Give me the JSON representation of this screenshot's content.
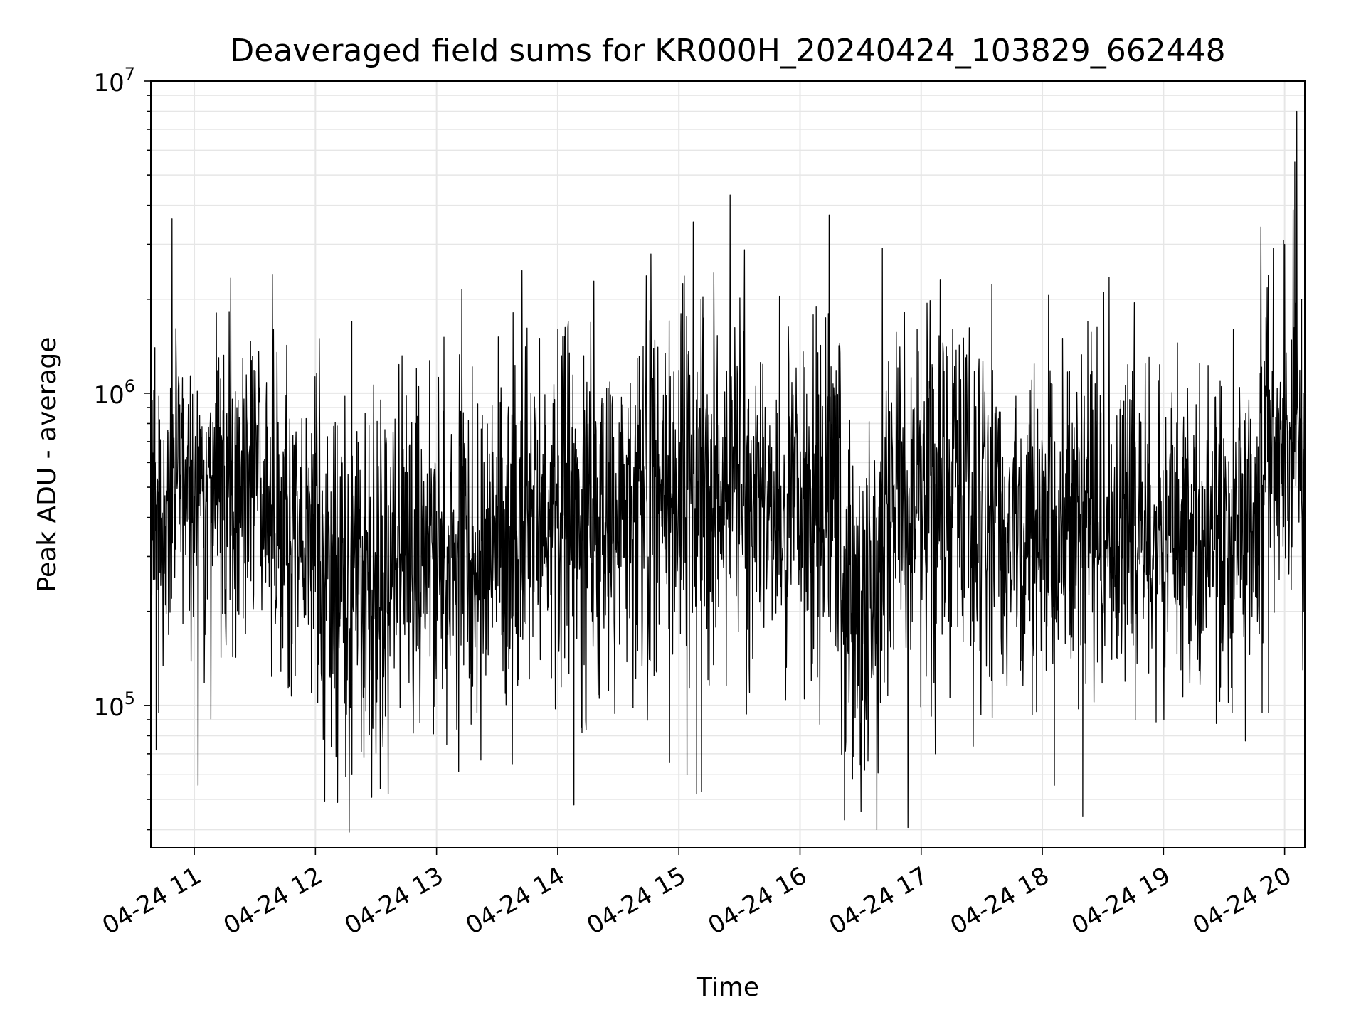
{
  "chart_data": {
    "type": "line",
    "title": "Deaveraged field sums for KR000H_20240424_103829_662448",
    "xlabel": "Time",
    "ylabel": "Peak ADU - average",
    "y_scale": "log",
    "ylim": [
      35000,
      10000000
    ],
    "xlim": [
      "2024-04-24 10:38:29",
      "2024-04-24 20:10:00"
    ],
    "grid": true,
    "legend": "none",
    "line_color": "#000000",
    "grid_color": "#e6e6e6",
    "x_ticks": [
      {
        "value": "2024-04-24 11:00",
        "label": "04-24 11"
      },
      {
        "value": "2024-04-24 12:00",
        "label": "04-24 12"
      },
      {
        "value": "2024-04-24 13:00",
        "label": "04-24 13"
      },
      {
        "value": "2024-04-24 14:00",
        "label": "04-24 14"
      },
      {
        "value": "2024-04-24 15:00",
        "label": "04-24 15"
      },
      {
        "value": "2024-04-24 16:00",
        "label": "04-24 16"
      },
      {
        "value": "2024-04-24 17:00",
        "label": "04-24 17"
      },
      {
        "value": "2024-04-24 18:00",
        "label": "04-24 18"
      },
      {
        "value": "2024-04-24 19:00",
        "label": "04-24 19"
      },
      {
        "value": "2024-04-24 20:00",
        "label": "04-24 20"
      }
    ],
    "y_ticks": [
      {
        "value": 100000,
        "base": "10",
        "exp": "5"
      },
      {
        "value": 1000000,
        "base": "10",
        "exp": "6"
      },
      {
        "value": 10000000,
        "base": "10",
        "exp": "7"
      }
    ],
    "segments": [
      {
        "start": "2024-04-24 10:38",
        "end": "2024-04-24 11:40",
        "median": 500000,
        "spread": 0.62,
        "events": [
          [
            0.05,
            72000
          ],
          [
            0.07,
            95000
          ],
          [
            0.04,
            1400000
          ],
          [
            0.55,
            1300000
          ]
        ]
      },
      {
        "start": "2024-04-24 11:40",
        "end": "2024-04-24 12:00",
        "median": 350000,
        "spread": 0.58,
        "events": [
          [
            0.35,
            115000
          ],
          [
            0.9,
            110000
          ]
        ]
      },
      {
        "start": "2024-04-24 12:00",
        "end": "2024-04-24 12:40",
        "median": 230000,
        "spread": 0.68,
        "events": [
          [
            0.2,
            88000
          ],
          [
            0.45,
            1700000
          ],
          [
            0.6,
            68000
          ],
          [
            0.9,
            52000
          ]
        ]
      },
      {
        "start": "2024-04-24 12:40",
        "end": "2024-04-24 13:30",
        "median": 320000,
        "spread": 0.68,
        "events": [
          [
            0.2,
            1200000
          ],
          [
            0.5,
            75000
          ],
          [
            0.8,
            95000
          ]
        ]
      },
      {
        "start": "2024-04-24 13:30",
        "end": "2024-04-24 14:00",
        "median": 380000,
        "spread": 0.68,
        "events": [
          [
            0.25,
            65000
          ],
          [
            0.7,
            1500000
          ]
        ]
      },
      {
        "start": "2024-04-24 14:00",
        "end": "2024-04-24 14:40",
        "median": 420000,
        "spread": 0.68,
        "events": [
          [
            0.0,
            1600000
          ],
          [
            0.2,
            48000
          ],
          [
            0.3,
            82000
          ]
        ]
      },
      {
        "start": "2024-04-24 14:40",
        "end": "2024-04-24 15:40",
        "median": 480000,
        "spread": 0.68,
        "events": [
          [
            0.35,
            1800000
          ],
          [
            0.4,
            60000
          ],
          [
            0.48,
            52000
          ],
          [
            0.52,
            53000
          ]
        ]
      },
      {
        "start": "2024-04-24 15:40",
        "end": "2024-04-24 16:20",
        "median": 420000,
        "spread": 0.68,
        "events": [
          [
            0.7,
            1900000
          ],
          [
            0.85,
            1800000
          ]
        ]
      },
      {
        "start": "2024-04-24 16:20",
        "end": "2024-04-24 16:40",
        "median": 220000,
        "spread": 0.68,
        "events": [
          [
            0.1,
            43000
          ],
          [
            0.3,
            58000
          ],
          [
            0.6,
            62000
          ],
          [
            0.9,
            40000
          ]
        ]
      },
      {
        "start": "2024-04-24 16:40",
        "end": "2024-04-24 17:40",
        "median": 450000,
        "spread": 0.66,
        "events": [
          [
            0.3,
            1600000
          ],
          [
            0.45,
            70000
          ],
          [
            0.7,
            1300000
          ]
        ]
      },
      {
        "start": "2024-04-24 17:40",
        "end": "2024-04-24 18:30",
        "median": 370000,
        "spread": 0.64,
        "events": [
          [
            0.6,
            1500000
          ],
          [
            0.8,
            44000
          ],
          [
            0.85,
            1700000
          ]
        ]
      },
      {
        "start": "2024-04-24 18:30",
        "end": "2024-04-24 19:50",
        "median": 380000,
        "spread": 0.62,
        "events": [
          [
            0.2,
            90000
          ],
          [
            0.8,
            95000
          ]
        ]
      },
      {
        "start": "2024-04-24 19:50",
        "end": "2024-04-24 20:10",
        "median": 700000,
        "spread": 0.66,
        "events": [
          [
            0.5,
            3000000
          ],
          [
            0.75,
            5500000
          ],
          [
            0.8,
            8000000
          ],
          [
            0.92,
            2000000
          ],
          [
            0.95,
            130000
          ],
          [
            0.1,
            95000
          ]
        ]
      }
    ]
  }
}
